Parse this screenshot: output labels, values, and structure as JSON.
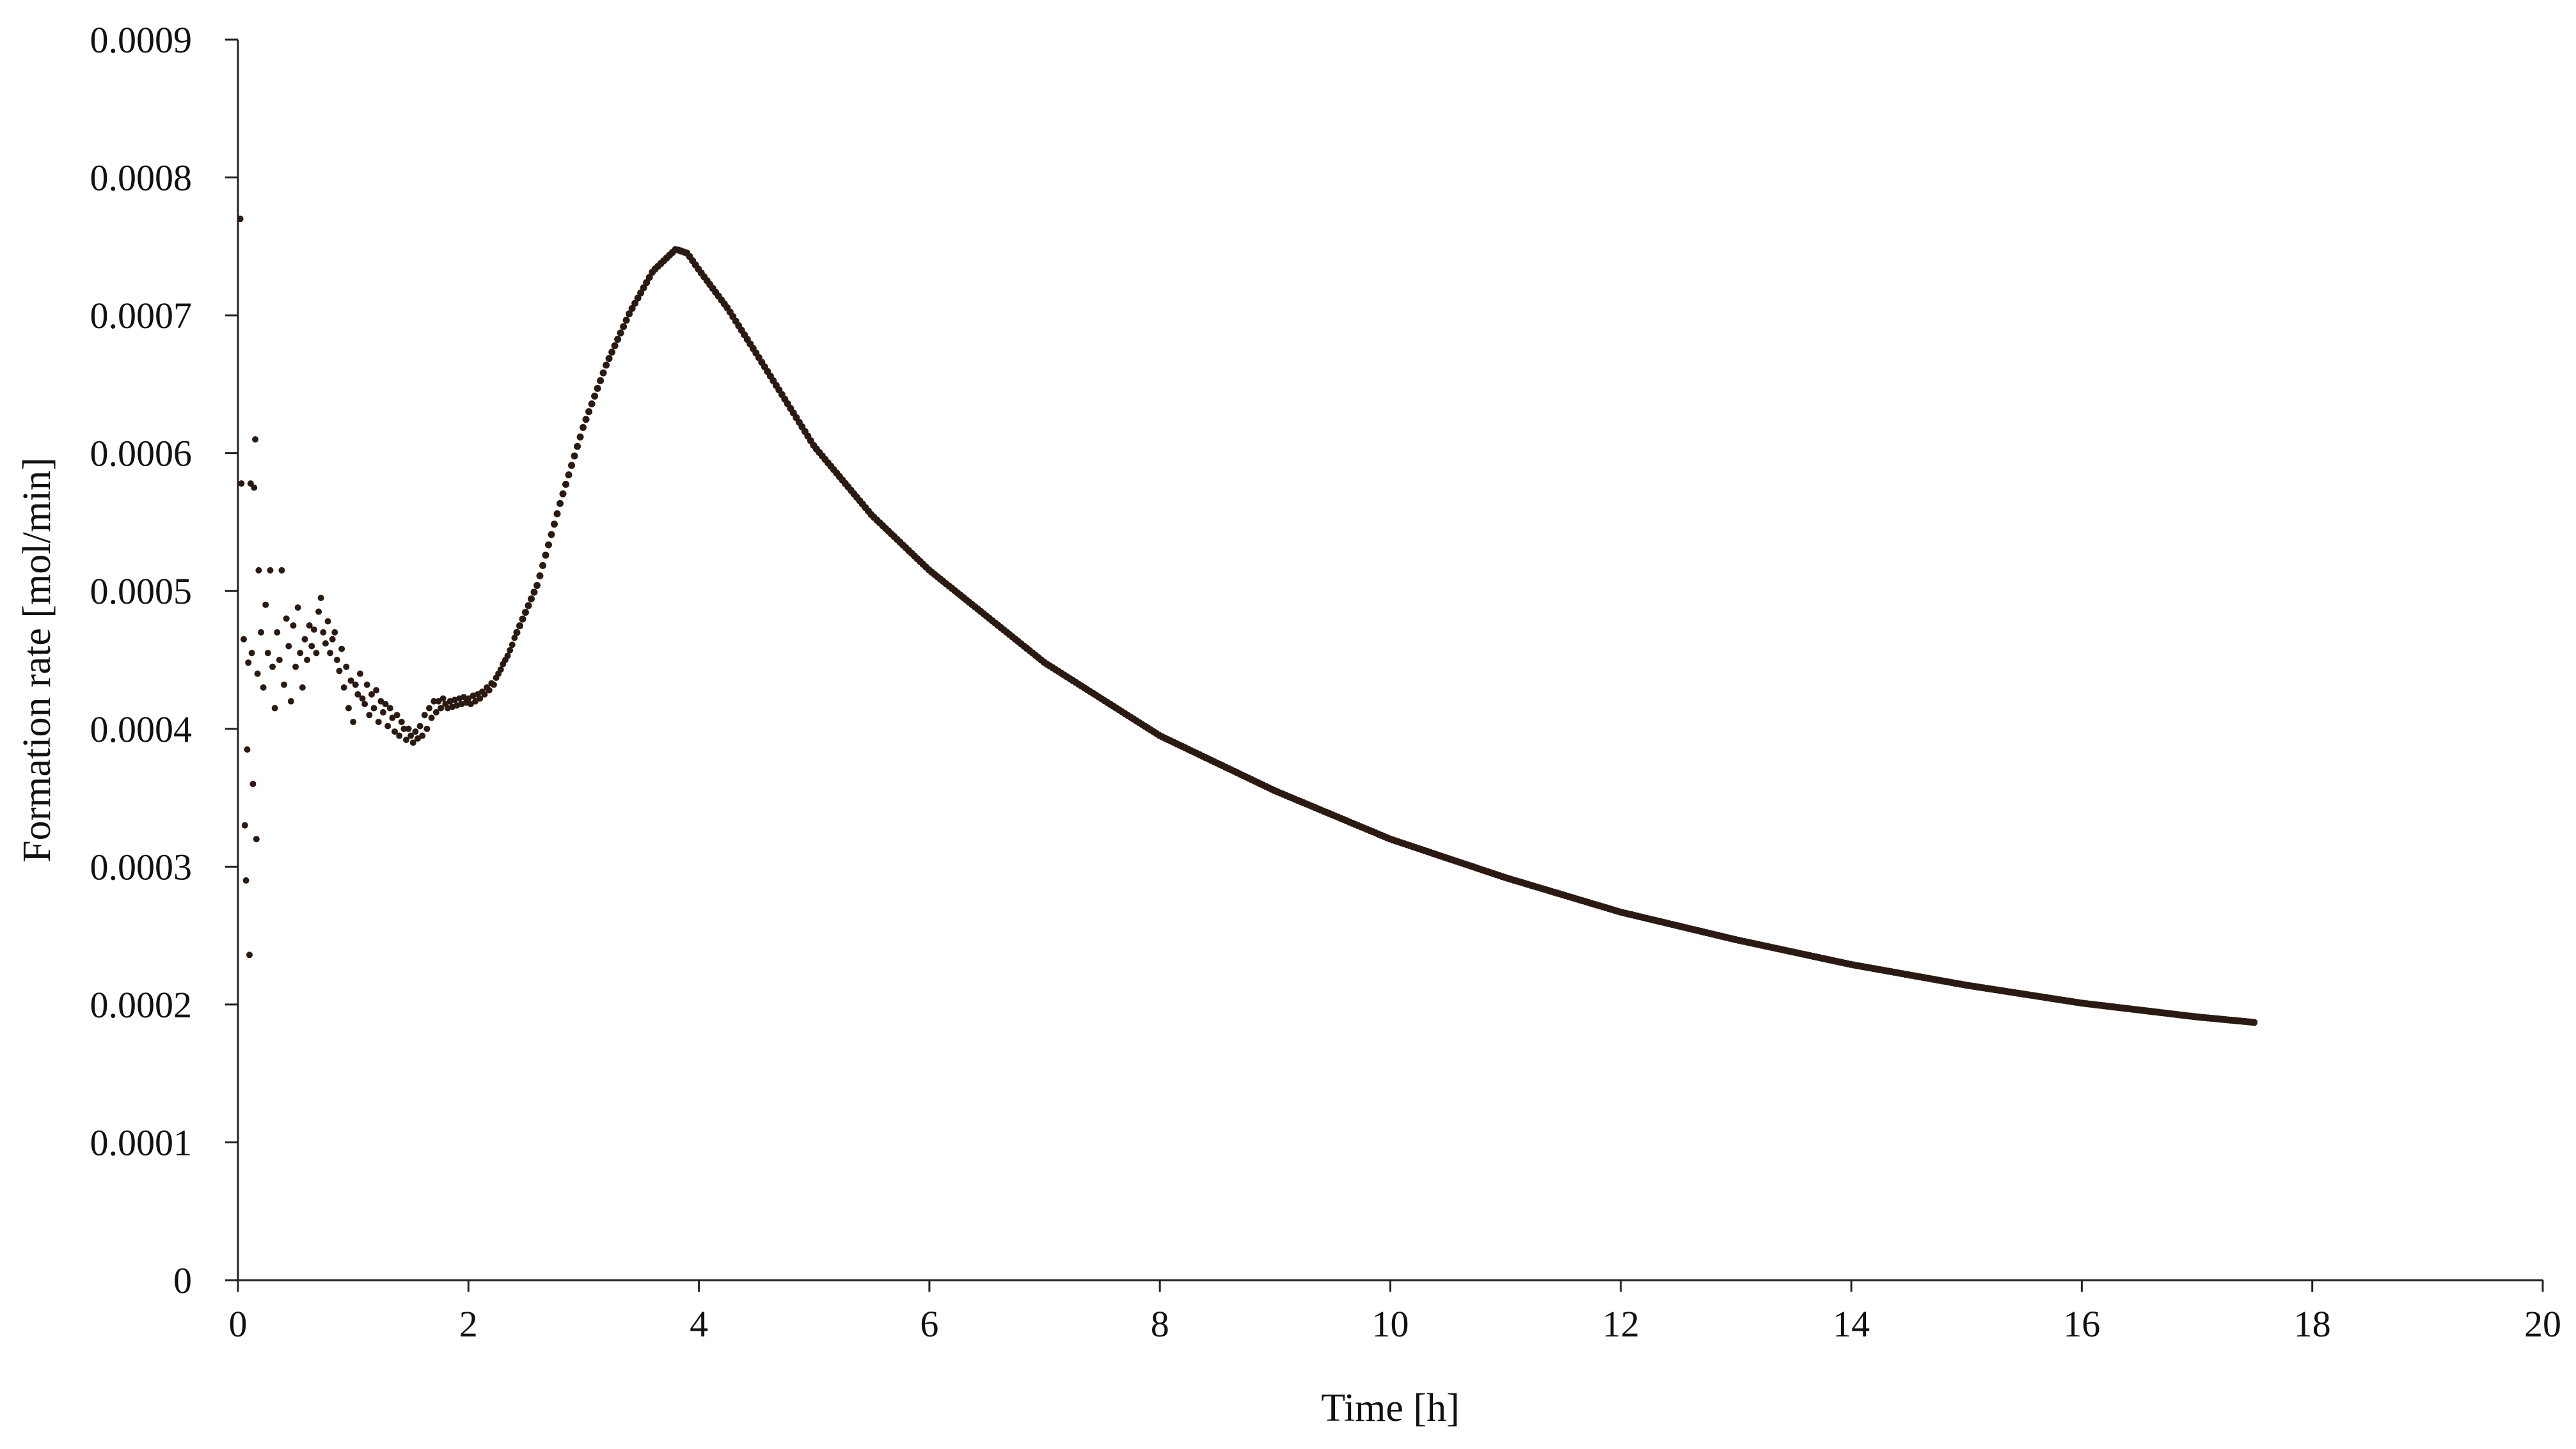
{
  "chart_data": {
    "type": "scatter",
    "title": "",
    "xlabel": "Time [h]",
    "ylabel": "Formation rate [mol/min]",
    "xlim": [
      0,
      20
    ],
    "ylim": [
      0,
      0.0009
    ],
    "x_ticks": [
      "0",
      "2",
      "4",
      "6",
      "8",
      "10",
      "12",
      "14",
      "16",
      "18",
      "20"
    ],
    "y_ticks": [
      "0",
      "0.0001",
      "0.0002",
      "0.0003",
      "0.0004",
      "0.0005",
      "0.0006",
      "0.0007",
      "0.0008",
      "0.0009"
    ],
    "grid": false,
    "legend": "none",
    "marker_color": "#2a1a12",
    "series": [
      {
        "points": [
          [
            0.02,
            0.00077
          ],
          [
            0.03,
            0.000578
          ],
          [
            0.05,
            0.000465
          ],
          [
            0.06,
            0.00033
          ],
          [
            0.07,
            0.00029
          ],
          [
            0.08,
            0.000385
          ],
          [
            0.09,
            0.000448
          ],
          [
            0.1,
            0.000236
          ],
          [
            0.11,
            0.000578
          ],
          [
            0.12,
            0.000455
          ],
          [
            0.13,
            0.00036
          ],
          [
            0.14,
            0.000575
          ],
          [
            0.15,
            0.00061
          ],
          [
            0.16,
            0.00032
          ],
          [
            0.17,
            0.00044
          ],
          [
            0.18,
            0.000515
          ],
          [
            0.2,
            0.00047
          ],
          [
            0.22,
            0.00043
          ],
          [
            0.24,
            0.00049
          ],
          [
            0.26,
            0.000455
          ],
          [
            0.28,
            0.000515
          ],
          [
            0.3,
            0.000445
          ],
          [
            0.32,
            0.000415
          ],
          [
            0.34,
            0.00047
          ],
          [
            0.36,
            0.00045
          ],
          [
            0.38,
            0.000515
          ],
          [
            0.4,
            0.000432
          ],
          [
            0.42,
            0.00048
          ],
          [
            0.44,
            0.00046
          ],
          [
            0.46,
            0.00042
          ],
          [
            0.48,
            0.000475
          ],
          [
            0.5,
            0.000445
          ],
          [
            0.52,
            0.000488
          ],
          [
            0.54,
            0.000455
          ],
          [
            0.56,
            0.00043
          ],
          [
            0.58,
            0.000465
          ],
          [
            0.6,
            0.00045
          ],
          [
            0.62,
            0.000475
          ],
          [
            0.64,
            0.00046
          ],
          [
            0.66,
            0.000472
          ],
          [
            0.68,
            0.000455
          ],
          [
            0.7,
            0.000485
          ],
          [
            0.72,
            0.000495
          ],
          [
            0.74,
            0.00047
          ],
          [
            0.76,
            0.000462
          ],
          [
            0.78,
            0.000478
          ],
          [
            0.8,
            0.000455
          ],
          [
            0.82,
            0.000465
          ],
          [
            0.84,
            0.00047
          ],
          [
            0.86,
            0.00045
          ],
          [
            0.88,
            0.000442
          ],
          [
            0.9,
            0.000458
          ],
          [
            0.92,
            0.00043
          ],
          [
            0.94,
            0.000445
          ],
          [
            0.96,
            0.000415
          ],
          [
            0.98,
            0.000435
          ],
          [
            1.0,
            0.000405
          ],
          [
            1.02,
            0.000432
          ],
          [
            1.04,
            0.000425
          ],
          [
            1.06,
            0.00044
          ],
          [
            1.08,
            0.000422
          ],
          [
            1.1,
            0.000418
          ],
          [
            1.12,
            0.000432
          ],
          [
            1.14,
            0.00041
          ],
          [
            1.16,
            0.000425
          ],
          [
            1.18,
            0.000415
          ],
          [
            1.2,
            0.000428
          ],
          [
            1.22,
            0.000405
          ],
          [
            1.24,
            0.00042
          ],
          [
            1.26,
            0.000412
          ],
          [
            1.28,
            0.000418
          ],
          [
            1.3,
            0.000402
          ],
          [
            1.32,
            0.000415
          ],
          [
            1.34,
            0.000408
          ],
          [
            1.36,
            0.000398
          ],
          [
            1.38,
            0.00041
          ],
          [
            1.4,
            0.000395
          ],
          [
            1.42,
            0.000405
          ],
          [
            1.44,
            0.0004
          ],
          [
            1.46,
            0.000392
          ],
          [
            1.48,
            0.0004
          ],
          [
            1.5,
            0.000395
          ],
          [
            1.52,
            0.00039
          ],
          [
            1.54,
            0.000398
          ],
          [
            1.56,
            0.000393
          ],
          [
            1.58,
            0.000402
          ],
          [
            1.6,
            0.000395
          ],
          [
            1.62,
            0.00041
          ],
          [
            1.64,
            0.0004
          ],
          [
            1.66,
            0.000415
          ],
          [
            1.68,
            0.000408
          ],
          [
            1.7,
            0.00042
          ],
          [
            1.72,
            0.000412
          ],
          [
            1.74,
            0.00042
          ],
          [
            1.76,
            0.000415
          ],
          [
            1.78,
            0.000422
          ],
          [
            1.8,
            0.000418
          ],
          [
            1.82,
            0.000415
          ],
          [
            1.84,
            0.00042
          ],
          [
            1.86,
            0.000416
          ],
          [
            1.88,
            0.000421
          ],
          [
            1.9,
            0.000417
          ],
          [
            1.92,
            0.000422
          ],
          [
            1.94,
            0.000418
          ],
          [
            1.96,
            0.000423
          ],
          [
            1.98,
            0.000419
          ],
          [
            2.0,
            0.000422
          ],
          [
            2.02,
            0.000418
          ],
          [
            2.04,
            0.000424
          ],
          [
            2.06,
            0.00042
          ],
          [
            2.08,
            0.000425
          ],
          [
            2.1,
            0.000422
          ],
          [
            2.12,
            0.000427
          ],
          [
            2.14,
            0.000425
          ],
          [
            2.16,
            0.00043
          ],
          [
            2.18,
            0.000428
          ],
          [
            2.2,
            0.000433
          ],
          [
            2.22,
            0.000432
          ],
          [
            2.24,
            0.000437
          ],
          [
            2.26,
            0.00044
          ],
          [
            2.28,
            0.000443
          ],
          [
            2.3,
            0.000447
          ],
          [
            2.32,
            0.00045
          ],
          [
            2.34,
            0.000453
          ],
          [
            2.36,
            0.000457
          ],
          [
            2.38,
            0.000461
          ],
          [
            2.4,
            0.000466
          ]
        ]
      }
    ]
  }
}
